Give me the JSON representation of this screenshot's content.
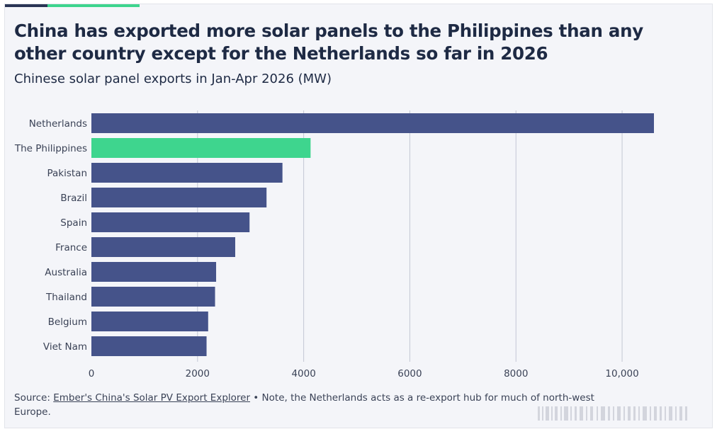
{
  "colors": {
    "bar": "#45538a",
    "highlight": "#3ed58e",
    "title_text": "#1e2a44",
    "body_text": "#3a4256",
    "grid": "#c3c7d4",
    "top_rule_dark": "#2a3555",
    "top_rule_accent": "#3ed58e"
  },
  "header": {
    "title": "China has exported more solar panels to the Philippines than any other country except for the Netherlands so far in 2026",
    "subtitle": "Chinese solar panel exports in Jan-Apr 2026 (MW)"
  },
  "chart_data": {
    "type": "bar",
    "orientation": "horizontal",
    "title": "China has exported more solar panels to the Philippines than any other country except for the Netherlands so far in 2026",
    "subtitle": "Chinese solar panel exports in Jan-Apr 2026 (MW)",
    "categories": [
      "Netherlands",
      "The Philippines",
      "Pakistan",
      "Brazil",
      "Spain",
      "France",
      "Australia",
      "Thailand",
      "Belgium",
      "Viet Nam"
    ],
    "values": [
      10600,
      4130,
      3600,
      3300,
      2980,
      2710,
      2350,
      2330,
      2200,
      2170
    ],
    "highlight_category": "The Philippines",
    "xlim": [
      0,
      10600
    ],
    "xticks": [
      0,
      2000,
      4000,
      6000,
      8000,
      10000
    ],
    "xtick_labels": [
      "0",
      "2000",
      "4000",
      "6000",
      "8000",
      "10,000"
    ],
    "grid": "vertical",
    "legend": "none"
  },
  "footer": {
    "source_prefix": "Source: ",
    "source_link": "Ember's China's Solar PV Export Explorer",
    "note": " • Note, the Netherlands acts as a re-export hub for much of north-west Europe."
  }
}
